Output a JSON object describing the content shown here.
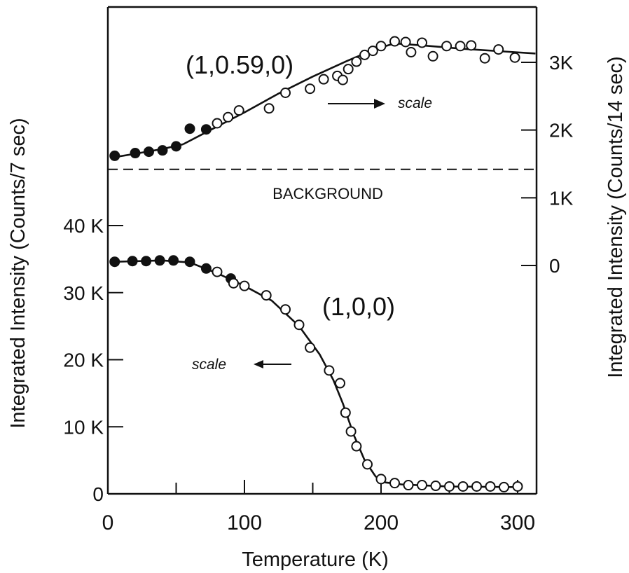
{
  "chart_data": {
    "type": "scatter",
    "xlabel": "Temperature (K)",
    "ylabel_left": "Integrated Intensity (Counts/7 sec)",
    "ylabel_right": "Integrated Intensity (Counts/14 sec)",
    "xlim": [
      0,
      320
    ],
    "x_ticks": [
      0,
      100,
      200,
      300
    ],
    "x_tick_labels": [
      "0",
      "100",
      "200",
      "300"
    ],
    "left_axis": {
      "ylim": [
        0,
        47000
      ],
      "ticks": [
        0,
        10000,
        20000,
        30000,
        40000
      ],
      "tick_labels": [
        "0",
        "10 K",
        "20 K",
        "30 K",
        "40 K"
      ]
    },
    "right_axis": {
      "ylim": [
        -3500,
        3540
      ],
      "ticks": [
        0,
        1000,
        2000,
        3000
      ],
      "tick_labels": [
        "0",
        "1K",
        "2K",
        "3K"
      ]
    },
    "background_line": {
      "value": 1420,
      "axis": "right",
      "label": "BACKGROUND"
    },
    "annotations": {
      "upper_label": "(1,0.59,0)",
      "lower_label": "(1,0,0)",
      "right_scale_label": "scale",
      "left_scale_label": "scale"
    },
    "series": [
      {
        "name": "(1,0.59,0)",
        "axis": "right",
        "points": [
          {
            "x": 5,
            "y": 1620,
            "filled": true
          },
          {
            "x": 20,
            "y": 1660,
            "filled": true
          },
          {
            "x": 30,
            "y": 1680,
            "filled": true
          },
          {
            "x": 40,
            "y": 1700,
            "filled": true
          },
          {
            "x": 50,
            "y": 1760,
            "filled": true
          },
          {
            "x": 60,
            "y": 2020,
            "filled": true
          },
          {
            "x": 72,
            "y": 2010,
            "filled": true
          },
          {
            "x": 80,
            "y": 2100,
            "filled": false
          },
          {
            "x": 88,
            "y": 2190,
            "filled": false
          },
          {
            "x": 96,
            "y": 2290,
            "filled": false
          },
          {
            "x": 118,
            "y": 2320,
            "filled": false
          },
          {
            "x": 130,
            "y": 2550,
            "filled": false
          },
          {
            "x": 148,
            "y": 2610,
            "filled": false
          },
          {
            "x": 158,
            "y": 2750,
            "filled": false
          },
          {
            "x": 168,
            "y": 2800,
            "filled": false
          },
          {
            "x": 172,
            "y": 2740,
            "filled": false
          },
          {
            "x": 176,
            "y": 2900,
            "filled": false
          },
          {
            "x": 182,
            "y": 3010,
            "filled": false
          },
          {
            "x": 188,
            "y": 3110,
            "filled": false
          },
          {
            "x": 194,
            "y": 3170,
            "filled": false
          },
          {
            "x": 200,
            "y": 3240,
            "filled": false
          },
          {
            "x": 210,
            "y": 3310,
            "filled": false
          },
          {
            "x": 218,
            "y": 3300,
            "filled": false
          },
          {
            "x": 222,
            "y": 3150,
            "filled": false
          },
          {
            "x": 230,
            "y": 3290,
            "filled": false
          },
          {
            "x": 238,
            "y": 3090,
            "filled": false
          },
          {
            "x": 248,
            "y": 3240,
            "filled": false
          },
          {
            "x": 258,
            "y": 3240,
            "filled": false
          },
          {
            "x": 266,
            "y": 3250,
            "filled": false
          },
          {
            "x": 276,
            "y": 3060,
            "filled": false
          },
          {
            "x": 286,
            "y": 3190,
            "filled": false
          },
          {
            "x": 298,
            "y": 3070,
            "filled": false
          }
        ],
        "fit": [
          {
            "x": 5,
            "y": 1600
          },
          {
            "x": 20,
            "y": 1650
          },
          {
            "x": 40,
            "y": 1720
          },
          {
            "x": 55,
            "y": 1790
          },
          {
            "x": 75,
            "y": 2000
          },
          {
            "x": 100,
            "y": 2260
          },
          {
            "x": 125,
            "y": 2540
          },
          {
            "x": 150,
            "y": 2790
          },
          {
            "x": 175,
            "y": 3020
          },
          {
            "x": 195,
            "y": 3190
          },
          {
            "x": 210,
            "y": 3280
          },
          {
            "x": 230,
            "y": 3250
          },
          {
            "x": 260,
            "y": 3200
          },
          {
            "x": 290,
            "y": 3160
          },
          {
            "x": 313,
            "y": 3130
          }
        ]
      },
      {
        "name": "(1,0,0)",
        "axis": "left",
        "points": [
          {
            "x": 5,
            "y": 34600,
            "filled": true
          },
          {
            "x": 18,
            "y": 34700,
            "filled": true
          },
          {
            "x": 28,
            "y": 34700,
            "filled": true
          },
          {
            "x": 38,
            "y": 34800,
            "filled": true
          },
          {
            "x": 48,
            "y": 34800,
            "filled": true
          },
          {
            "x": 60,
            "y": 34600,
            "filled": true
          },
          {
            "x": 72,
            "y": 33600,
            "filled": true
          },
          {
            "x": 80,
            "y": 33100,
            "filled": false
          },
          {
            "x": 90,
            "y": 32100,
            "filled": true
          },
          {
            "x": 92,
            "y": 31400,
            "filled": false
          },
          {
            "x": 100,
            "y": 31000,
            "filled": false
          },
          {
            "x": 116,
            "y": 29600,
            "filled": false
          },
          {
            "x": 130,
            "y": 27500,
            "filled": false
          },
          {
            "x": 140,
            "y": 25200,
            "filled": false
          },
          {
            "x": 148,
            "y": 21800,
            "filled": false
          },
          {
            "x": 162,
            "y": 18400,
            "filled": false
          },
          {
            "x": 170,
            "y": 16500,
            "filled": false
          },
          {
            "x": 174,
            "y": 12100,
            "filled": false
          },
          {
            "x": 178,
            "y": 9300,
            "filled": false
          },
          {
            "x": 182,
            "y": 7100,
            "filled": false
          },
          {
            "x": 190,
            "y": 4400,
            "filled": false
          },
          {
            "x": 200,
            "y": 2200,
            "filled": false
          },
          {
            "x": 210,
            "y": 1600,
            "filled": false
          },
          {
            "x": 220,
            "y": 1300,
            "filled": false
          },
          {
            "x": 230,
            "y": 1300,
            "filled": false
          },
          {
            "x": 240,
            "y": 1200,
            "filled": false
          },
          {
            "x": 250,
            "y": 1100,
            "filled": false
          },
          {
            "x": 260,
            "y": 1100,
            "filled": false
          },
          {
            "x": 270,
            "y": 1100,
            "filled": false
          },
          {
            "x": 280,
            "y": 1100,
            "filled": false
          },
          {
            "x": 290,
            "y": 1000,
            "filled": false
          },
          {
            "x": 300,
            "y": 1100,
            "filled": false
          }
        ],
        "fit": [
          {
            "x": 5,
            "y": 34600
          },
          {
            "x": 40,
            "y": 34800
          },
          {
            "x": 60,
            "y": 34500
          },
          {
            "x": 80,
            "y": 32900
          },
          {
            "x": 100,
            "y": 31000
          },
          {
            "x": 120,
            "y": 28800
          },
          {
            "x": 140,
            "y": 25000
          },
          {
            "x": 155,
            "y": 20800
          },
          {
            "x": 165,
            "y": 17000
          },
          {
            "x": 172,
            "y": 13500
          },
          {
            "x": 180,
            "y": 8800
          },
          {
            "x": 188,
            "y": 5000
          },
          {
            "x": 196,
            "y": 2600
          },
          {
            "x": 203,
            "y": 1700
          },
          {
            "x": 215,
            "y": 1400
          },
          {
            "x": 250,
            "y": 1100
          },
          {
            "x": 300,
            "y": 1000
          }
        ]
      }
    ]
  }
}
